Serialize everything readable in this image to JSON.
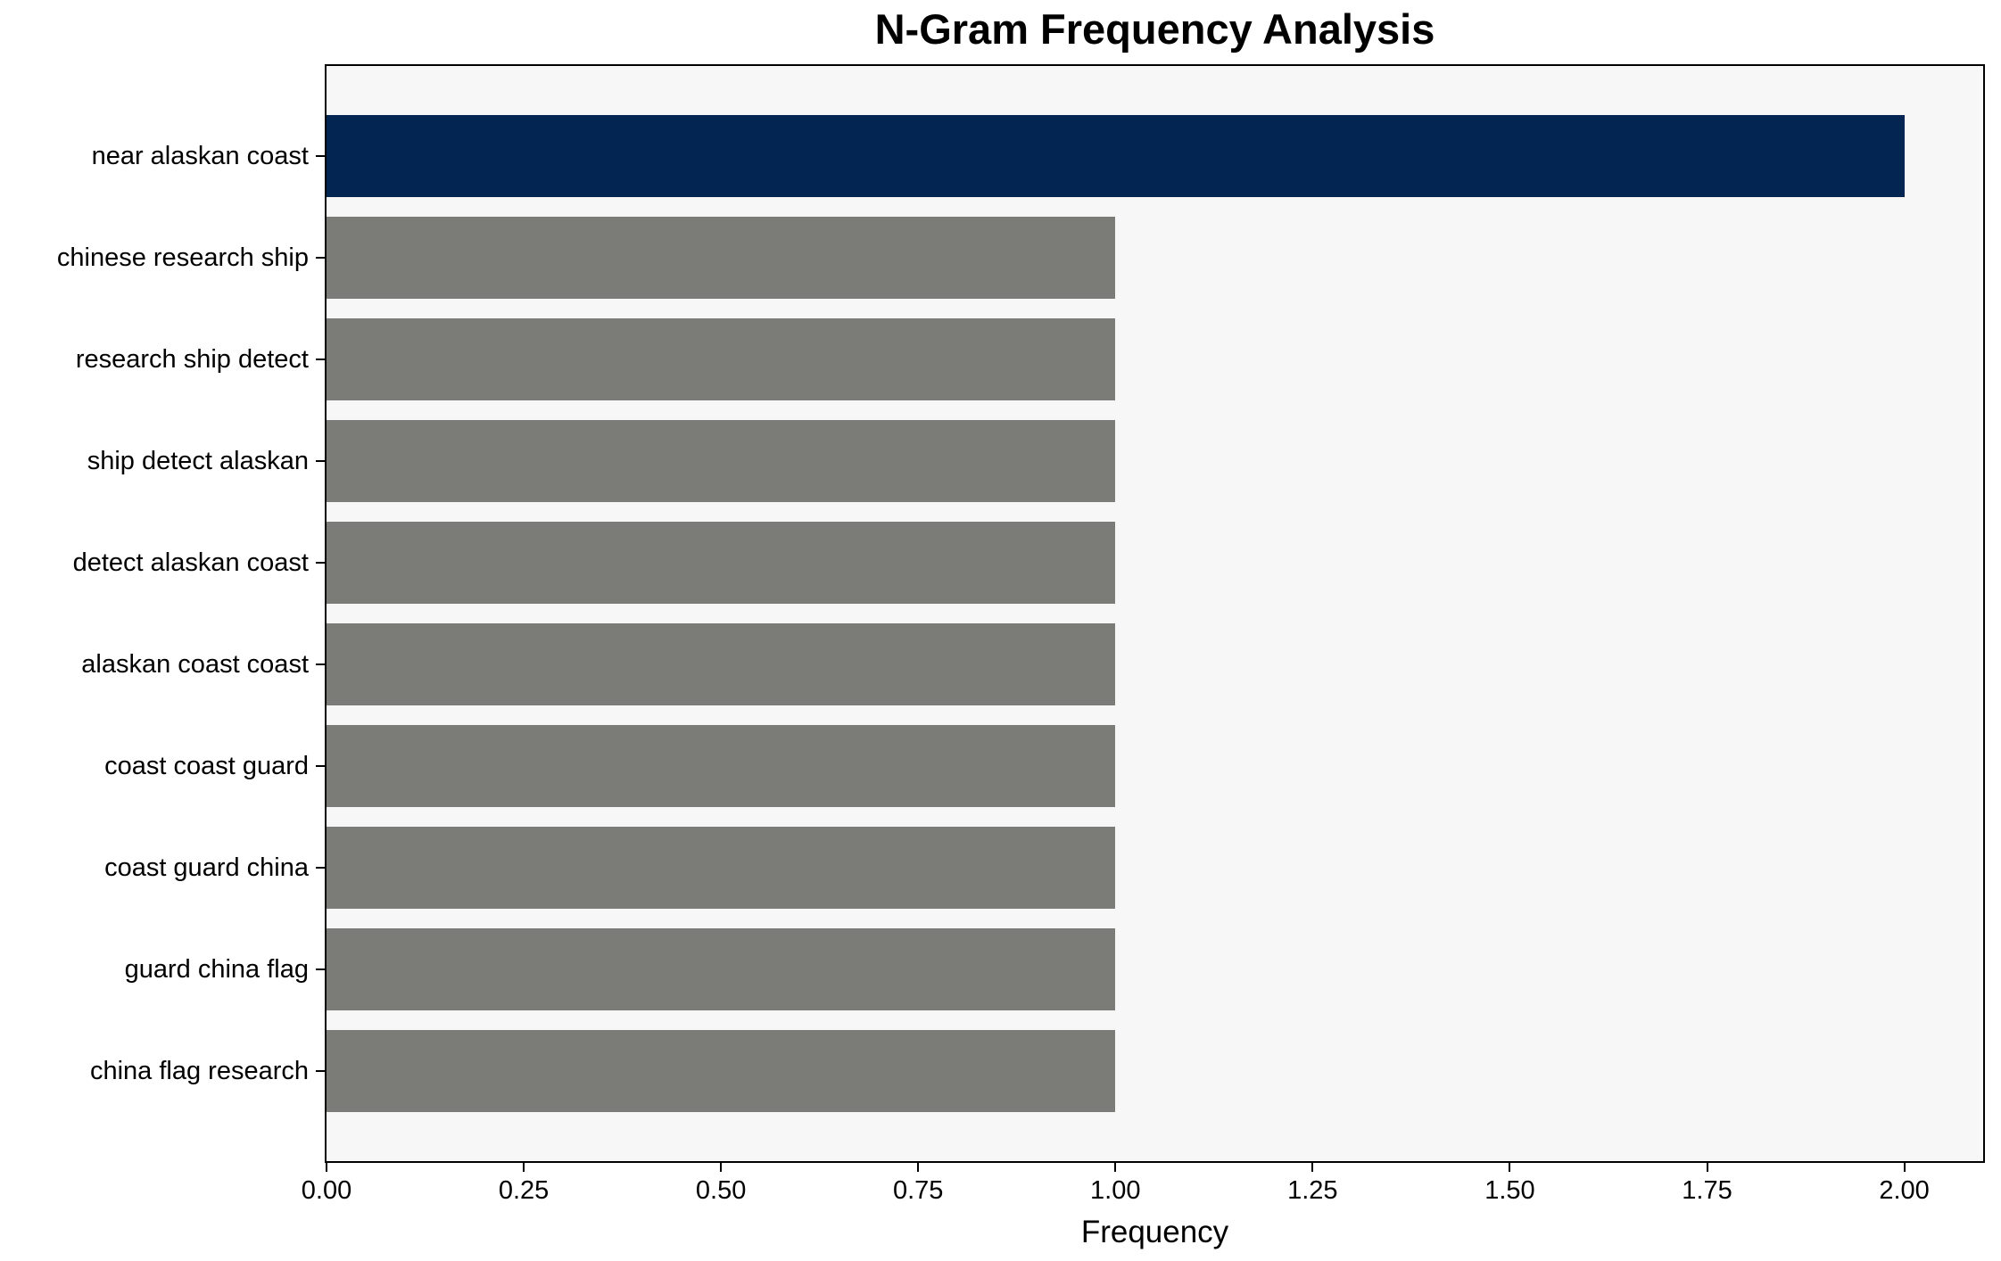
{
  "chart_data": {
    "type": "bar",
    "orientation": "horizontal",
    "title": "N-Gram Frequency Analysis",
    "xlabel": "Frequency",
    "ylabel": "",
    "categories": [
      "near alaskan coast",
      "chinese research ship",
      "research ship detect",
      "ship detect alaskan",
      "detect alaskan coast",
      "alaskan coast coast",
      "coast coast guard",
      "coast guard china",
      "guard china flag",
      "china flag research"
    ],
    "values": [
      2,
      1,
      1,
      1,
      1,
      1,
      1,
      1,
      1,
      1
    ],
    "bar_colors": [
      "#022552",
      "#7b7b78",
      "#7b7b78",
      "#7b7b78",
      "#7b7b78",
      "#7b7b78",
      "#7b7b78",
      "#7b7b78",
      "#7b7b78",
      "#7b7b78"
    ],
    "xlim": [
      0,
      2.1
    ],
    "xtick_labels": [
      "0.00",
      "0.25",
      "0.50",
      "0.75",
      "1.00",
      "1.25",
      "1.50",
      "1.75",
      "2.00"
    ],
    "xtick_values": [
      0,
      0.25,
      0.5,
      0.75,
      1.0,
      1.25,
      1.5,
      1.75,
      2.0
    ],
    "grid": false,
    "legend": null,
    "colors": {
      "highlight_bar": "#022552",
      "default_bar": "#7b7b78",
      "plot_background": "#f7f7f7",
      "figure_background": "#ffffff",
      "spine": "#000000",
      "text": "#000000"
    }
  }
}
